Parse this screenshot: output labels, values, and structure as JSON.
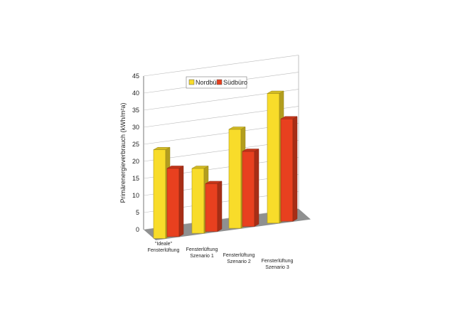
{
  "chart_data": {
    "type": "bar",
    "title": "",
    "xlabel": "",
    "ylabel": "Primärenergieverbrauch (kWh/m²a)",
    "ylim": [
      0,
      45
    ],
    "yticks": [
      0,
      5,
      10,
      15,
      20,
      25,
      30,
      35,
      40,
      45
    ],
    "categories": [
      [
        "\"Ideale\"",
        "Fensterlüftung"
      ],
      [
        "Fensterlüftung",
        "Szenario 1"
      ],
      [
        "Fensterlüftung",
        "Szenario 2"
      ],
      [
        "Fensterlüftung",
        "Szenario 3"
      ]
    ],
    "series": [
      {
        "name": "Nordbüro",
        "values": [
          26,
          19,
          29,
          38
        ],
        "color": "#f8dc2a"
      },
      {
        "name": "Südbüro",
        "values": [
          20,
          14,
          22,
          30
        ],
        "color": "#e8401f"
      }
    ],
    "grid": true,
    "legend_position": "top"
  }
}
